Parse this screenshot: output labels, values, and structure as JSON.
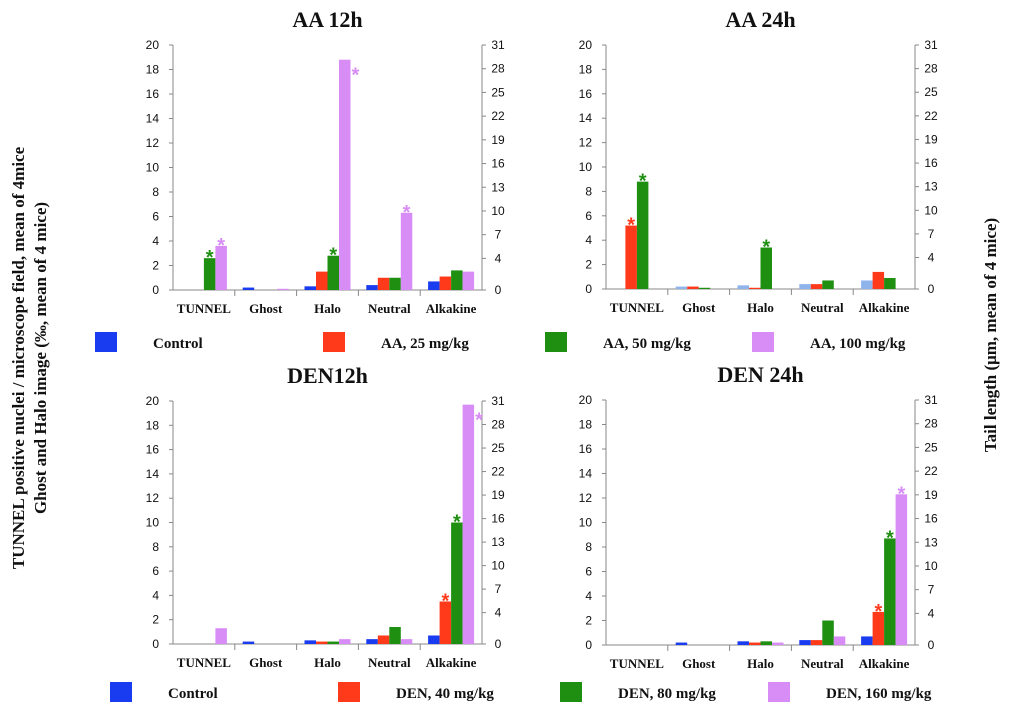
{
  "labels": {
    "ylabel_left": [
      "TUNNEL positive nuclei / microscope field, mean of 4mice",
      "Ghost and Halo   image (‰, mean of 4 mice)"
    ],
    "ylabel_right": "Tail length (μm, mean of 4 mice)"
  },
  "legends": [
    {
      "items": [
        {
          "label": "Control",
          "color": "#1a3cf0"
        },
        {
          "label": "AA, 25 mg/kg",
          "color": "#ff3a1a"
        },
        {
          "label": "AA,  50 mg/kg",
          "color": "#1f8f12"
        },
        {
          "label": "AA, 100 mg/kg",
          "color": "#d88cf5"
        }
      ]
    },
    {
      "items": [
        {
          "label": "Control",
          "color": "#1a3cf0"
        },
        {
          "label": "DEN, 40 mg/kg",
          "color": "#ff3a1a"
        },
        {
          "label": "DEN,  80 mg/kg",
          "color": "#1f8f12"
        },
        {
          "label": "DEN, 160 mg/kg",
          "color": "#d88cf5"
        }
      ]
    }
  ],
  "chart_data": [
    {
      "type": "bar",
      "title": "AA 12h",
      "categories": [
        "TUNNEL",
        "Ghost",
        "Halo",
        "Neutral",
        "Alkakine"
      ],
      "ylim_left": [
        0,
        20
      ],
      "yticks_left": [
        0,
        2,
        4,
        6,
        8,
        10,
        12,
        14,
        16,
        18,
        20
      ],
      "ylim_right": [
        0,
        31
      ],
      "yticks_right": [
        0,
        4,
        7,
        10,
        13,
        16,
        19,
        22,
        25,
        28,
        31
      ],
      "series": [
        {
          "name": "Control",
          "color": "#1a3cf0",
          "values": [
            0,
            0.2,
            0.3,
            0.4,
            0.7
          ]
        },
        {
          "name": "AA, 25 mg/kg",
          "color": "#ff3a1a",
          "values": [
            0,
            0,
            1.5,
            1.0,
            1.1
          ]
        },
        {
          "name": "AA,  50 mg/kg",
          "color": "#1f8f12",
          "values": [
            2.6,
            0,
            2.8,
            1.0,
            1.6
          ]
        },
        {
          "name": "AA, 100 mg/kg",
          "color": "#d88cf5",
          "values": [
            3.6,
            0.1,
            18.8,
            6.3,
            1.5
          ]
        }
      ],
      "significance": [
        {
          "category": 0,
          "series": 2,
          "label": "*"
        },
        {
          "category": 0,
          "series": 3,
          "label": "*"
        },
        {
          "category": 2,
          "series": 2,
          "label": "*"
        },
        {
          "category": 2,
          "series": 3,
          "label": "*"
        },
        {
          "category": 3,
          "series": 3,
          "label": "*"
        }
      ]
    },
    {
      "type": "bar",
      "title": "AA 24h",
      "categories": [
        "TUNNEL",
        "Ghost",
        "Halo",
        "Neutral",
        "Alkakine"
      ],
      "ylim_left": [
        0,
        20
      ],
      "yticks_left": [
        0,
        2,
        4,
        6,
        8,
        10,
        12,
        14,
        16,
        18,
        20
      ],
      "ylim_right": [
        0,
        31
      ],
      "yticks_right": [
        0,
        4,
        7,
        10,
        13,
        16,
        19,
        22,
        25,
        28,
        31
      ],
      "series": [
        {
          "name": "Control",
          "color": "#8fb4ec",
          "values": [
            0,
            0.2,
            0.3,
            0.4,
            0.7
          ]
        },
        {
          "name": "AA, 25 mg/kg",
          "color": "#ff3a1a",
          "values": [
            5.2,
            0.2,
            0.1,
            0.4,
            1.4
          ]
        },
        {
          "name": "AA,  50 mg/kg",
          "color": "#1f8f12",
          "values": [
            8.8,
            0.1,
            3.4,
            0.7,
            0.9
          ]
        },
        {
          "name": "AA, 100 mg/kg",
          "color": "#d88cf5",
          "values": [
            0,
            0,
            0,
            0,
            0
          ]
        }
      ],
      "significance": [
        {
          "category": 0,
          "series": 1,
          "label": "*"
        },
        {
          "category": 0,
          "series": 2,
          "label": "*"
        },
        {
          "category": 2,
          "series": 2,
          "label": "*"
        }
      ]
    },
    {
      "type": "bar",
      "title": "DEN12h",
      "categories": [
        "TUNNEL",
        "Ghost",
        "Halo",
        "Neutral",
        "Alkakine"
      ],
      "ylim_left": [
        0,
        20
      ],
      "yticks_left": [
        0,
        2,
        4,
        6,
        8,
        10,
        12,
        14,
        16,
        18,
        20
      ],
      "ylim_right": [
        0,
        31
      ],
      "yticks_right": [
        0,
        4,
        7,
        10,
        13,
        16,
        19,
        22,
        25,
        28,
        31
      ],
      "series": [
        {
          "name": "Control",
          "color": "#1a3cf0",
          "values": [
            0,
            0.2,
            0.3,
            0.4,
            0.7
          ]
        },
        {
          "name": "DEN, 40 mg/kg",
          "color": "#ff3a1a",
          "values": [
            0,
            0,
            0.2,
            0.7,
            3.5
          ]
        },
        {
          "name": "DEN,  80 mg/kg",
          "color": "#1f8f12",
          "values": [
            0,
            0,
            0.2,
            1.4,
            10.0
          ]
        },
        {
          "name": "DEN, 160 mg/kg",
          "color": "#d88cf5",
          "values": [
            1.3,
            0,
            0.4,
            0.4,
            19.7
          ]
        }
      ],
      "significance": [
        {
          "category": 4,
          "series": 1,
          "label": "*"
        },
        {
          "category": 4,
          "series": 2,
          "label": "*"
        },
        {
          "category": 4,
          "series": 3,
          "label": "*"
        }
      ]
    },
    {
      "type": "bar",
      "title": "DEN 24h",
      "categories": [
        "TUNNEL",
        "Ghost",
        "Halo",
        "Neutral",
        "Alkakine"
      ],
      "ylim_left": [
        0,
        20
      ],
      "yticks_left": [
        0,
        2,
        4,
        6,
        8,
        10,
        12,
        14,
        16,
        18,
        20
      ],
      "ylim_right": [
        0,
        31
      ],
      "yticks_right": [
        0,
        4,
        7,
        10,
        13,
        16,
        19,
        22,
        25,
        28,
        31
      ],
      "series": [
        {
          "name": "Control",
          "color": "#1a3cf0",
          "values": [
            0,
            0.2,
            0.3,
            0.4,
            0.7
          ]
        },
        {
          "name": "DEN, 40 mg/kg",
          "color": "#ff3a1a",
          "values": [
            0,
            0,
            0.2,
            0.4,
            2.7
          ]
        },
        {
          "name": "DEN,  80 mg/kg",
          "color": "#1f8f12",
          "values": [
            0,
            0,
            0.3,
            2.0,
            8.7
          ]
        },
        {
          "name": "DEN, 160 mg/kg",
          "color": "#d88cf5",
          "values": [
            0,
            0,
            0.2,
            0.7,
            12.3
          ]
        }
      ],
      "significance": [
        {
          "category": 4,
          "series": 1,
          "label": "*"
        },
        {
          "category": 4,
          "series": 2,
          "label": "*"
        },
        {
          "category": 4,
          "series": 3,
          "label": "*"
        }
      ]
    }
  ]
}
